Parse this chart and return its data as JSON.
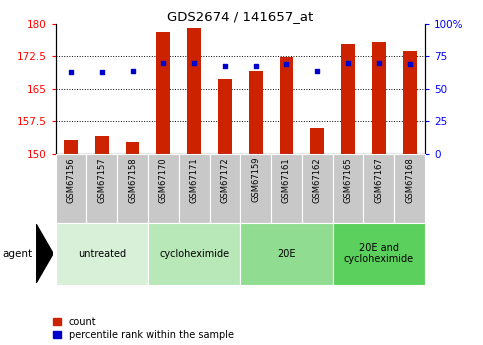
{
  "title": "GDS2674 / 141657_at",
  "samples": [
    "GSM67156",
    "GSM67157",
    "GSM67158",
    "GSM67170",
    "GSM67171",
    "GSM67172",
    "GSM67159",
    "GSM67161",
    "GSM67162",
    "GSM67165",
    "GSM67167",
    "GSM67168"
  ],
  "bar_values": [
    153.2,
    154.0,
    152.6,
    178.2,
    179.0,
    167.3,
    169.2,
    172.4,
    156.0,
    175.3,
    175.8,
    173.8
  ],
  "percentile_values": [
    63,
    63,
    64,
    70,
    70,
    68,
    68,
    69,
    64,
    70,
    70,
    69
  ],
  "bar_color": "#cc2200",
  "dot_color": "#0000cc",
  "ylim_left": [
    150,
    180
  ],
  "ylim_right": [
    0,
    100
  ],
  "yticks_left": [
    150,
    157.5,
    165,
    172.5,
    180
  ],
  "yticks_right": [
    0,
    25,
    50,
    75,
    100
  ],
  "ytick_labels_left": [
    "150",
    "157.5",
    "165",
    "172.5",
    "180"
  ],
  "ytick_labels_right": [
    "0",
    "25",
    "50",
    "75",
    "100%"
  ],
  "groups": [
    {
      "label": "untreated",
      "start": 0,
      "end": 3,
      "color": "#d8f0d8"
    },
    {
      "label": "cycloheximide",
      "start": 3,
      "end": 6,
      "color": "#b8e8b8"
    },
    {
      "label": "20E",
      "start": 6,
      "end": 9,
      "color": "#90dc90"
    },
    {
      "label": "20E and\ncycloheximide",
      "start": 9,
      "end": 12,
      "color": "#5cd05c"
    }
  ],
  "agent_label": "agent",
  "legend_count_label": "count",
  "legend_percentile_label": "percentile rank within the sample",
  "xticklabel_bg": "#c8c8c8",
  "bar_width": 0.45
}
